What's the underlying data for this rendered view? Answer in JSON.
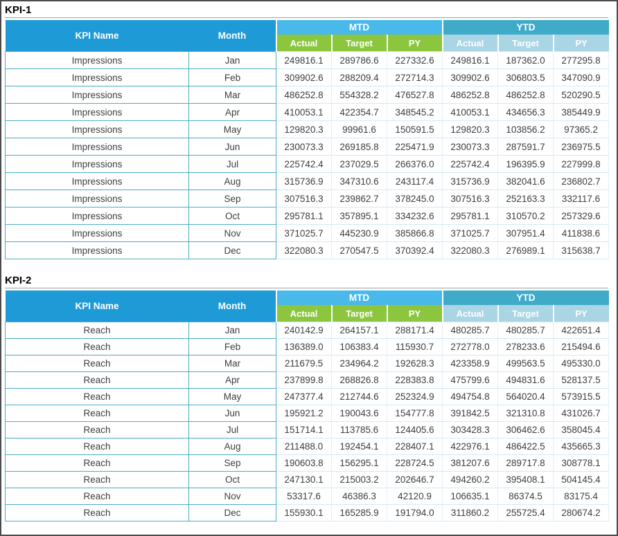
{
  "window_title": "KPI report",
  "colors": {
    "header_blue": "#1e9bd7",
    "mtd_band_blue": "#49b8eb",
    "ytd_band_teal": "#3fabc9",
    "mtd_subheader_green": "#8cc63f",
    "ytd_subheader_lightblue": "#a9d5e5",
    "cell_border_teal": "#4bacc6",
    "data_gridline": "#cfe9f5",
    "number_text": "#3d3d3d"
  },
  "tables": [
    {
      "title": "KPI-1",
      "kpi_name": "Impressions",
      "header": {
        "kpi_name": "KPI Name",
        "month": "Month",
        "mtd": "MTD",
        "ytd": "YTD",
        "sub": [
          "Actual",
          "Target",
          "PY"
        ]
      },
      "rows": [
        [
          "Impressions",
          "Jan",
          "249816.1",
          "289786.6",
          "227332.6",
          "249816.1",
          "187362.0",
          "277295.8"
        ],
        [
          "Impressions",
          "Feb",
          "309902.6",
          "288209.4",
          "272714.3",
          "309902.6",
          "306803.5",
          "347090.9"
        ],
        [
          "Impressions",
          "Mar",
          "486252.8",
          "554328.2",
          "476527.8",
          "486252.8",
          "486252.8",
          "520290.5"
        ],
        [
          "Impressions",
          "Apr",
          "410053.1",
          "422354.7",
          "348545.2",
          "410053.1",
          "434656.3",
          "385449.9"
        ],
        [
          "Impressions",
          "May",
          "129820.3",
          "99961.6",
          "150591.5",
          "129820.3",
          "103856.2",
          "97365.2"
        ],
        [
          "Impressions",
          "Jun",
          "230073.3",
          "269185.8",
          "225471.9",
          "230073.3",
          "287591.7",
          "236975.5"
        ],
        [
          "Impressions",
          "Jul",
          "225742.4",
          "237029.5",
          "266376.0",
          "225742.4",
          "196395.9",
          "227999.8"
        ],
        [
          "Impressions",
          "Aug",
          "315736.9",
          "347310.6",
          "243117.4",
          "315736.9",
          "382041.6",
          "236802.7"
        ],
        [
          "Impressions",
          "Sep",
          "307516.3",
          "239862.7",
          "378245.0",
          "307516.3",
          "252163.3",
          "332117.6"
        ],
        [
          "Impressions",
          "Oct",
          "295781.1",
          "357895.1",
          "334232.6",
          "295781.1",
          "310570.2",
          "257329.6"
        ],
        [
          "Impressions",
          "Nov",
          "371025.7",
          "445230.9",
          "385866.8",
          "371025.7",
          "307951.4",
          "411838.6"
        ],
        [
          "Impressions",
          "Dec",
          "322080.3",
          "270547.5",
          "370392.4",
          "322080.3",
          "276989.1",
          "315638.7"
        ]
      ]
    },
    {
      "title": "KPI-2",
      "kpi_name": "Reach",
      "header": {
        "kpi_name": "KPI Name",
        "month": "Month",
        "mtd": "MTD",
        "ytd": "YTD",
        "sub": [
          "Actual",
          "Target",
          "PY"
        ]
      },
      "rows": [
        [
          "Reach",
          "Jan",
          "240142.9",
          "264157.1",
          "288171.4",
          "480285.7",
          "480285.7",
          "422651.4"
        ],
        [
          "Reach",
          "Feb",
          "136389.0",
          "106383.4",
          "115930.7",
          "272778.0",
          "278233.6",
          "215494.6"
        ],
        [
          "Reach",
          "Mar",
          "211679.5",
          "234964.2",
          "192628.3",
          "423358.9",
          "499563.5",
          "495330.0"
        ],
        [
          "Reach",
          "Apr",
          "237899.8",
          "268826.8",
          "228383.8",
          "475799.6",
          "494831.6",
          "528137.5"
        ],
        [
          "Reach",
          "May",
          "247377.4",
          "212744.6",
          "252324.9",
          "494754.8",
          "564020.4",
          "573915.5"
        ],
        [
          "Reach",
          "Jun",
          "195921.2",
          "190043.6",
          "154777.8",
          "391842.5",
          "321310.8",
          "431026.7"
        ],
        [
          "Reach",
          "Jul",
          "151714.1",
          "113785.6",
          "124405.6",
          "303428.3",
          "306462.6",
          "358045.4"
        ],
        [
          "Reach",
          "Aug",
          "211488.0",
          "192454.1",
          "228407.1",
          "422976.1",
          "486422.5",
          "435665.3"
        ],
        [
          "Reach",
          "Sep",
          "190603.8",
          "156295.1",
          "228724.5",
          "381207.6",
          "289717.8",
          "308778.1"
        ],
        [
          "Reach",
          "Oct",
          "247130.1",
          "215003.2",
          "202646.7",
          "494260.2",
          "395408.1",
          "504145.4"
        ],
        [
          "Reach",
          "Nov",
          "53317.6",
          "46386.3",
          "42120.9",
          "106635.1",
          "86374.5",
          "83175.4"
        ],
        [
          "Reach",
          "Dec",
          "155930.1",
          "165285.9",
          "191794.0",
          "311860.2",
          "255725.4",
          "280674.2"
        ]
      ]
    }
  ]
}
